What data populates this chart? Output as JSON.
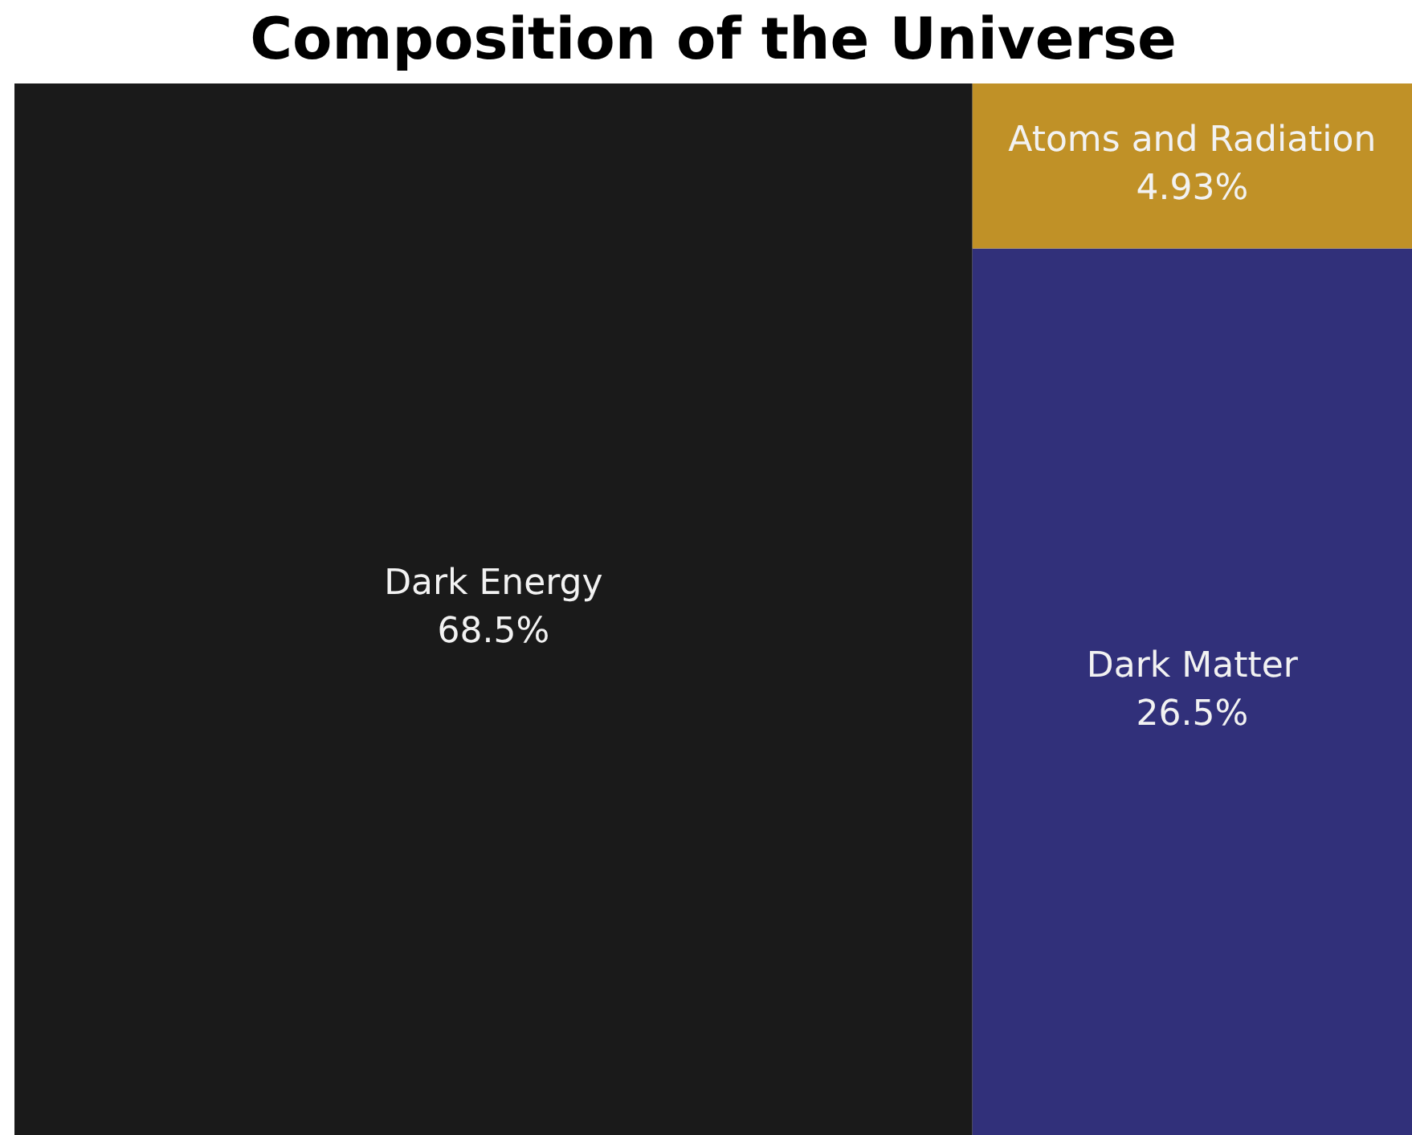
{
  "chart_data": {
    "type": "other",
    "title": "Composition of the Universe",
    "categories": [
      "Dark Energy",
      "Dark Matter",
      "Atoms and Radiation"
    ],
    "values": [
      68.5,
      26.5,
      4.93
    ],
    "value_labels": [
      "68.5%",
      "26.5%",
      "4.93%"
    ],
    "colors": [
      "#1a1a1a",
      "#31307a",
      "#c09127"
    ]
  }
}
